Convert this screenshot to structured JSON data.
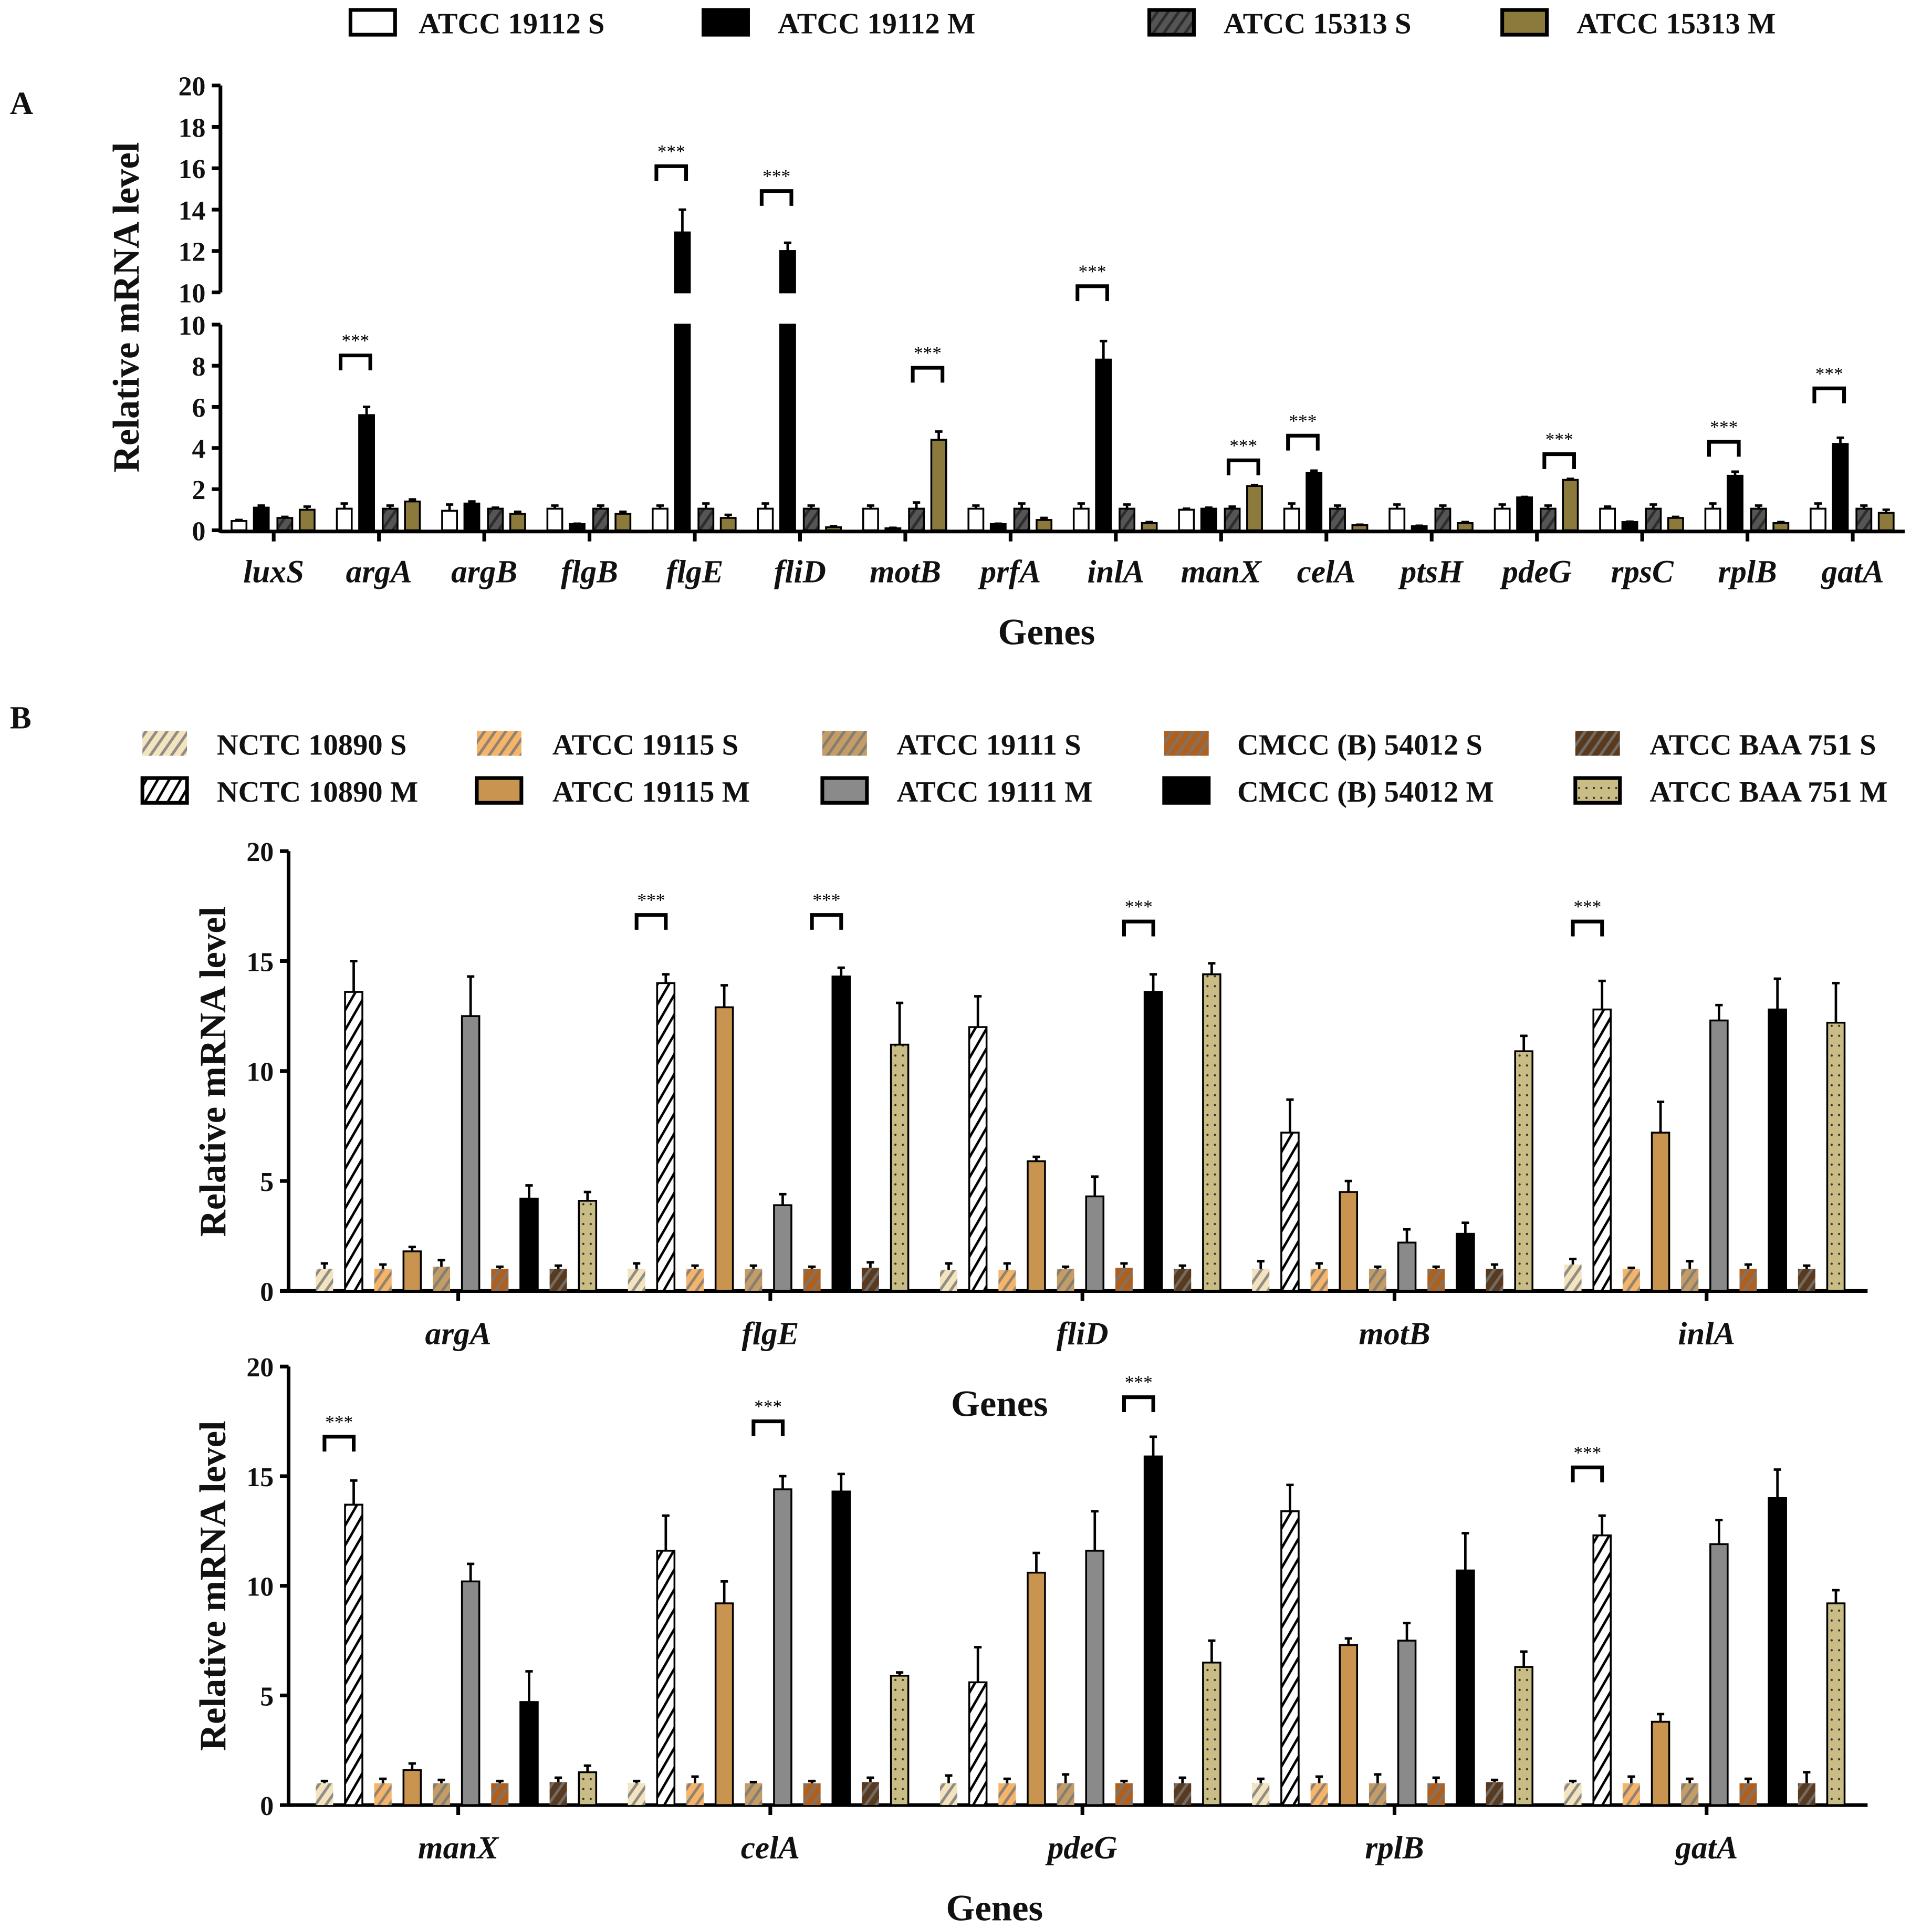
{
  "chart_data": [
    {
      "panel": "A",
      "type": "bar",
      "panel_label": "A",
      "xlabel": "Genes",
      "ylabel": "Relative  mRNA  level",
      "y_axis_break": {
        "lower_range": [
          0,
          10
        ],
        "upper_range": [
          10,
          20
        ]
      },
      "yticks_lower": [
        "0",
        "2",
        "4",
        "6",
        "8",
        "10"
      ],
      "yticks_upper": [
        "10",
        "12",
        "14",
        "16",
        "18",
        "20"
      ],
      "legend_position": "top",
      "series": [
        {
          "name": "ATCC 19112 S",
          "color": "#ffffff",
          "fill": "solid"
        },
        {
          "name": "ATCC 19112 M",
          "color": "#000000",
          "fill": "solid"
        },
        {
          "name": "ATCC 15313 S",
          "color": "#555555",
          "fill": "hatch"
        },
        {
          "name": "ATCC 15313 M",
          "color": "#8c7a3c",
          "fill": "solid"
        }
      ],
      "categories": [
        "luxS",
        "argA",
        "argB",
        "flgB",
        "flgE",
        "fliD",
        "motB",
        "prfA",
        "inlA",
        "manX",
        "celA",
        "ptsH",
        "pdeG",
        "rpsC",
        "rplB",
        "gatA"
      ],
      "values": [
        [
          0.45,
          1.1,
          0.6,
          1.0
        ],
        [
          1.05,
          5.6,
          1.05,
          1.4
        ],
        [
          0.95,
          1.3,
          1.05,
          0.8
        ],
        [
          1.05,
          0.3,
          1.05,
          0.8
        ],
        [
          1.05,
          12.9,
          1.05,
          0.6
        ],
        [
          1.05,
          12.0,
          1.05,
          0.15
        ],
        [
          1.05,
          0.1,
          1.05,
          4.4
        ],
        [
          1.05,
          0.3,
          1.05,
          0.5
        ],
        [
          1.05,
          8.3,
          1.05,
          0.35
        ],
        [
          1.0,
          1.05,
          1.05,
          2.15
        ],
        [
          1.05,
          2.8,
          1.05,
          0.25
        ],
        [
          1.05,
          0.2,
          1.05,
          0.35
        ],
        [
          1.05,
          1.6,
          1.05,
          2.45
        ],
        [
          1.05,
          0.4,
          1.05,
          0.6
        ],
        [
          1.05,
          2.65,
          1.05,
          0.35
        ],
        [
          1.05,
          4.2,
          1.05,
          0.85
        ]
      ],
      "errors": [
        [
          0.05,
          0.1,
          0.05,
          0.15
        ],
        [
          0.25,
          0.4,
          0.15,
          0.1
        ],
        [
          0.3,
          0.1,
          0.05,
          0.1
        ],
        [
          0.15,
          0.02,
          0.15,
          0.1
        ],
        [
          0.15,
          1.1,
          0.25,
          0.15
        ],
        [
          0.25,
          0.4,
          0.15,
          0.05
        ],
        [
          0.15,
          0.02,
          0.3,
          0.4
        ],
        [
          0.15,
          0.02,
          0.25,
          0.1
        ],
        [
          0.25,
          0.9,
          0.2,
          0.05
        ],
        [
          0.05,
          0.05,
          0.1,
          0.05
        ],
        [
          0.25,
          0.1,
          0.15,
          0.02
        ],
        [
          0.2,
          0.02,
          0.15,
          0.05
        ],
        [
          0.2,
          0.02,
          0.15,
          0.05
        ],
        [
          0.1,
          0.02,
          0.2,
          0.05
        ],
        [
          0.25,
          0.2,
          0.15,
          0.05
        ],
        [
          0.25,
          0.3,
          0.15,
          0.15
        ]
      ],
      "significance": [
        {
          "category": "argA",
          "pair": [
            0,
            1
          ],
          "level": 8.5,
          "label": "***"
        },
        {
          "category": "flgE",
          "pair": [
            0,
            1
          ],
          "level": 16.1,
          "label": "***"
        },
        {
          "category": "fliD",
          "pair": [
            0,
            1
          ],
          "level": 14.9,
          "label": "***"
        },
        {
          "category": "motB",
          "pair": [
            2,
            3
          ],
          "level": 7.9,
          "label": "***"
        },
        {
          "category": "inlA",
          "pair": [
            0,
            1
          ],
          "level": 10.3,
          "label": "***"
        },
        {
          "category": "manX",
          "pair": [
            2,
            3
          ],
          "level": 3.4,
          "label": "***"
        },
        {
          "category": "celA",
          "pair": [
            0,
            1
          ],
          "level": 4.6,
          "label": "***"
        },
        {
          "category": "pdeG",
          "pair": [
            2,
            3
          ],
          "level": 3.7,
          "label": "***"
        },
        {
          "category": "rplB",
          "pair": [
            0,
            1
          ],
          "level": 4.3,
          "label": "***"
        },
        {
          "category": "gatA",
          "pair": [
            0,
            1
          ],
          "level": 6.9,
          "label": "***"
        }
      ]
    },
    {
      "panel": "B-top",
      "type": "bar",
      "panel_label": "B",
      "xlabel": "Genes",
      "ylabel": "Relative  mRNA  level",
      "ylim": [
        0,
        20
      ],
      "yticks": [
        "0",
        "5",
        "10",
        "15",
        "20"
      ],
      "legend_position": "top",
      "series": [
        {
          "name": "NCTC 10890 S",
          "color": "#f3e4bf",
          "fill": "hatch"
        },
        {
          "name": "NCTC 10890 M",
          "color": "#ffffff",
          "fill": "hatch-black"
        },
        {
          "name": "ATCC 19115 S",
          "color": "#f6b468",
          "fill": "hatch"
        },
        {
          "name": "ATCC 19115 M",
          "color": "#c8944f",
          "fill": "solid"
        },
        {
          "name": "ATCC 19111 S",
          "color": "#c49c66",
          "fill": "hatch"
        },
        {
          "name": "ATCC 19111 M",
          "color": "#8a8a8a",
          "fill": "solid"
        },
        {
          "name": "CMCC (B) 54012 S",
          "color": "#b0601c",
          "fill": "hatch"
        },
        {
          "name": "CMCC (B) 54012 M",
          "color": "#000000",
          "fill": "solid"
        },
        {
          "name": "ATCC BAA 751 S",
          "color": "#5a3a1e",
          "fill": "hatch"
        },
        {
          "name": "ATCC BAA 751 M",
          "color": "#c9bc84",
          "fill": "dotted"
        }
      ],
      "categories": [
        "argA",
        "flgE",
        "fliD",
        "motB",
        "inlA"
      ],
      "values": [
        [
          1.0,
          13.6,
          1.0,
          1.8,
          1.1,
          12.5,
          1.0,
          4.2,
          1.0,
          4.1
        ],
        [
          1.0,
          14.0,
          1.0,
          12.9,
          1.0,
          3.9,
          1.0,
          14.3,
          1.05,
          11.2
        ],
        [
          0.95,
          12.0,
          0.95,
          5.9,
          1.0,
          4.3,
          1.05,
          13.6,
          1.0,
          14.4
        ],
        [
          1.0,
          7.2,
          1.0,
          4.5,
          1.0,
          2.2,
          1.0,
          2.6,
          1.0,
          10.9
        ],
        [
          1.2,
          12.8,
          1.0,
          7.2,
          1.0,
          12.3,
          1.0,
          12.8,
          1.0,
          12.2
        ]
      ],
      "errors": [
        [
          0.25,
          1.4,
          0.2,
          0.2,
          0.3,
          1.8,
          0.1,
          0.6,
          0.15,
          0.4
        ],
        [
          0.25,
          0.4,
          0.15,
          1.0,
          0.15,
          0.5,
          0.1,
          0.4,
          0.25,
          1.9
        ],
        [
          0.3,
          1.4,
          0.3,
          0.2,
          0.1,
          0.9,
          0.2,
          0.8,
          0.15,
          0.5
        ],
        [
          0.35,
          1.5,
          0.25,
          0.5,
          0.1,
          0.6,
          0.1,
          0.5,
          0.2,
          0.7
        ],
        [
          0.25,
          1.3,
          0.05,
          1.4,
          0.35,
          0.7,
          0.2,
          1.4,
          0.15,
          1.8
        ]
      ],
      "significance": [
        {
          "category": "flgE",
          "pair": [
            0,
            1
          ],
          "level": 17.1,
          "label": "***"
        },
        {
          "category": "flgE",
          "pair": [
            6,
            7
          ],
          "level": 17.1,
          "label": "***"
        },
        {
          "category": "fliD",
          "pair": [
            6,
            7
          ],
          "level": 16.8,
          "label": "***"
        },
        {
          "category": "inlA",
          "pair": [
            0,
            1
          ],
          "level": 16.8,
          "label": "***"
        }
      ]
    },
    {
      "panel": "B-bottom",
      "type": "bar",
      "xlabel": "Genes",
      "ylabel": "Relative  mRNA  level",
      "ylim": [
        0,
        20
      ],
      "yticks": [
        "0",
        "5",
        "10",
        "15",
        "20"
      ],
      "categories": [
        "manX",
        "celA",
        "pdeG",
        "rplB",
        "gatA"
      ],
      "values": [
        [
          1.0,
          13.7,
          1.0,
          1.6,
          1.0,
          10.2,
          1.0,
          4.7,
          1.05,
          1.5
        ],
        [
          1.0,
          11.6,
          1.0,
          9.2,
          1.0,
          14.4,
          1.0,
          14.3,
          1.05,
          5.9
        ],
        [
          1.0,
          5.6,
          1.0,
          10.6,
          1.0,
          11.6,
          1.0,
          15.9,
          1.0,
          6.5
        ],
        [
          1.0,
          13.4,
          1.0,
          7.3,
          1.0,
          7.5,
          1.0,
          10.7,
          1.05,
          6.3
        ],
        [
          1.0,
          12.3,
          1.0,
          3.8,
          1.0,
          11.9,
          1.0,
          14.0,
          1.0,
          9.2
        ]
      ],
      "errors": [
        [
          0.1,
          1.1,
          0.2,
          0.3,
          0.15,
          0.8,
          0.1,
          1.4,
          0.2,
          0.3
        ],
        [
          0.1,
          1.6,
          0.3,
          1.0,
          0.05,
          0.6,
          0.1,
          0.8,
          0.2,
          0.15
        ],
        [
          0.35,
          1.6,
          0.2,
          0.9,
          0.4,
          1.8,
          0.1,
          0.9,
          0.25,
          1.0
        ],
        [
          0.2,
          1.2,
          0.3,
          0.3,
          0.4,
          0.8,
          0.25,
          1.7,
          0.1,
          0.7
        ],
        [
          0.1,
          0.9,
          0.3,
          0.35,
          0.2,
          1.1,
          0.2,
          1.3,
          0.5,
          0.6
        ]
      ],
      "significance": [
        {
          "category": "manX",
          "pair": [
            0,
            1
          ],
          "level": 16.8,
          "label": "***"
        },
        {
          "category": "celA",
          "pair": [
            4,
            5
          ],
          "level": 17.5,
          "label": "***"
        },
        {
          "category": "pdeG",
          "pair": [
            6,
            7
          ],
          "level": 18.6,
          "label": "***"
        },
        {
          "category": "gatA",
          "pair": [
            0,
            1
          ],
          "level": 15.4,
          "label": "***"
        }
      ]
    }
  ]
}
